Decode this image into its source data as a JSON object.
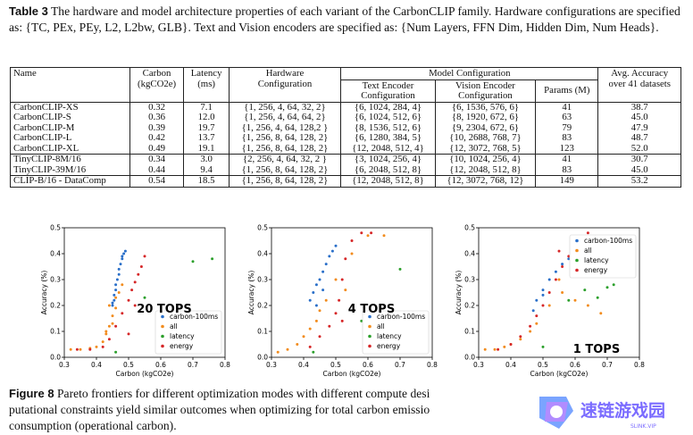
{
  "table_caption": {
    "label": "Table 3",
    "text": "The hardware and model architecture properties of each variant of the CarbonCLIP family. Hardware configurations are specified as: {TC, PEx, PEy, L2, L2bw, GLB}. Text and Vision encoders are specified as: {Num Layers, FFN Dim, Hidden Dim, Num Heads}."
  },
  "table": {
    "headers": {
      "name": "Name",
      "carbon": [
        "Carbon",
        "(kgCO2e)"
      ],
      "latency": [
        "Latency",
        "(ms)"
      ],
      "hardware": [
        "Hardware",
        "Configuration"
      ],
      "model_config": "Model Configuration",
      "text_encoder": [
        "Text Encoder",
        "Configuration"
      ],
      "vision_encoder": [
        "Vision Encoder",
        "Configuration"
      ],
      "params": "Params (M)",
      "accuracy": [
        "Avg. Accuracy",
        "over 41 datasets"
      ]
    },
    "groups": [
      [
        [
          "CarbonCLIP-XS",
          "0.32",
          "7.1",
          "{1, 256, 4, 64, 32, 2}",
          "{6, 1024, 284, 4}",
          "{6, 1536, 576, 6}",
          "41",
          "38.7"
        ],
        [
          "CarbonCLIP-S",
          "0.36",
          "12.0",
          "{1, 256, 4, 64, 64, 2}",
          "{6, 1024, 512, 6}",
          "{8, 1920, 672, 6}",
          "63",
          "45.0"
        ],
        [
          "CarbonCLIP-M",
          "0.39",
          "19.7",
          "{1, 256, 4, 64, 128,2 }",
          "{8, 1536, 512, 6}",
          "{9, 2304, 672, 6}",
          "79",
          "47.9"
        ],
        [
          "CarbonCLIP-L",
          "0.42",
          "13.7",
          "{1, 256, 8, 64, 128, 2}",
          "{6, 1280, 384, 5}",
          "{10, 2688, 768, 7}",
          "83",
          "48.7"
        ],
        [
          "CarbonCLIP-XL",
          "0.49",
          "19.1",
          "{1, 256, 8, 64, 128, 2}",
          "{12, 2048, 512, 4}",
          "{12, 3072, 768, 5}",
          "123",
          "52.0"
        ]
      ],
      [
        [
          "TinyCLIP-8M/16",
          "0.34",
          "3.0",
          "{2, 256, 4, 64, 32, 2 }",
          "{3, 1024, 256, 4}",
          "{10, 1024, 256, 4}",
          "41",
          "30.7"
        ],
        [
          "TinyCLIP-39M/16",
          "0.44",
          "9.4",
          "{1, 256, 8, 64, 128, 2}",
          "{6, 2048, 512, 8}",
          "{12, 2048, 512, 8}",
          "83",
          "45.0"
        ]
      ],
      [
        [
          "CLIP-B/16 - DataComp",
          "0.54",
          "18.5",
          "{1, 256, 8, 64, 128, 2}",
          "{12, 2048, 512, 8}",
          "{12, 3072, 768, 12}",
          "149",
          "53.2"
        ]
      ]
    ]
  },
  "figure_caption": {
    "label": "Figure 8",
    "text": "Pareto frontiers for different optimization modes with different compute desi",
    "line2": "putational constraints yield similar outcomes when optimizing for total carbon emissio",
    "line3": "consumption (operational carbon)."
  },
  "watermark": {
    "text": "速链游戏园",
    "subtext": "SLINK.VIP"
  },
  "colors": {
    "carbon-100ms": "#2a6fc9",
    "all": "#f28c1e",
    "latency": "#2ca02c",
    "energy": "#d62728"
  },
  "chart_data": [
    {
      "type": "scatter",
      "annotation": "20 TOPS",
      "xlabel": "Carbon (kgCO2e)",
      "ylabel": "Accuracy (%)",
      "xlim": [
        0.3,
        0.8
      ],
      "ylim": [
        0.0,
        0.5
      ],
      "xticks": [
        "0.3",
        "0.4",
        "0.5",
        "0.6",
        "0.7",
        "0.8"
      ],
      "yticks": [
        "0.0",
        "0.1",
        "0.2",
        "0.3",
        "0.4",
        "0.5"
      ],
      "legend_position": "lower-right",
      "series": [
        {
          "name": "carbon-100ms",
          "x": [
            0.45,
            0.455,
            0.46,
            0.46,
            0.465,
            0.47,
            0.47,
            0.475,
            0.48,
            0.48,
            0.485,
            0.49,
            0.45,
            0.455
          ],
          "y": [
            0.21,
            0.24,
            0.26,
            0.28,
            0.3,
            0.32,
            0.34,
            0.36,
            0.38,
            0.39,
            0.4,
            0.41,
            0.2,
            0.22
          ]
        },
        {
          "name": "all",
          "x": [
            0.32,
            0.35,
            0.38,
            0.4,
            0.42,
            0.43,
            0.44,
            0.45,
            0.44,
            0.46,
            0.47,
            0.45,
            0.43,
            0.46,
            0.48
          ],
          "y": [
            0.03,
            0.03,
            0.035,
            0.04,
            0.06,
            0.09,
            0.12,
            0.16,
            0.2,
            0.23,
            0.25,
            0.13,
            0.1,
            0.19,
            0.28
          ]
        },
        {
          "name": "latency",
          "x": [
            0.46,
            0.62,
            0.7,
            0.76,
            0.55
          ],
          "y": [
            0.02,
            0.14,
            0.37,
            0.38,
            0.23
          ]
        },
        {
          "name": "energy",
          "x": [
            0.34,
            0.38,
            0.42,
            0.44,
            0.46,
            0.48,
            0.5,
            0.51,
            0.52,
            0.53,
            0.54,
            0.55,
            0.5,
            0.52
          ],
          "y": [
            0.03,
            0.03,
            0.04,
            0.07,
            0.12,
            0.17,
            0.22,
            0.26,
            0.29,
            0.32,
            0.35,
            0.39,
            0.09,
            0.2
          ]
        }
      ]
    },
    {
      "type": "scatter",
      "annotation": "4 TOPS",
      "xlabel": "Carbon (kgCO2e)",
      "ylabel": "Accuracy (%)",
      "xlim": [
        0.3,
        0.8
      ],
      "ylim": [
        0.0,
        0.5
      ],
      "xticks": [
        "0.3",
        "0.4",
        "0.5",
        "0.6",
        "0.7",
        "0.8"
      ],
      "yticks": [
        "0.0",
        "0.1",
        "0.2",
        "0.3",
        "0.4",
        "0.5"
      ],
      "legend_position": "lower-right",
      "series": [
        {
          "name": "carbon-100ms",
          "x": [
            0.42,
            0.43,
            0.44,
            0.45,
            0.46,
            0.47,
            0.48,
            0.49,
            0.5,
            0.44,
            0.46
          ],
          "y": [
            0.22,
            0.25,
            0.28,
            0.3,
            0.33,
            0.36,
            0.39,
            0.41,
            0.43,
            0.2,
            0.26
          ]
        },
        {
          "name": "all",
          "x": [
            0.32,
            0.35,
            0.38,
            0.4,
            0.42,
            0.44,
            0.45,
            0.47,
            0.5,
            0.55,
            0.6,
            0.65,
            0.53
          ],
          "y": [
            0.02,
            0.03,
            0.05,
            0.08,
            0.11,
            0.14,
            0.18,
            0.22,
            0.3,
            0.4,
            0.47,
            0.47,
            0.26
          ]
        },
        {
          "name": "latency",
          "x": [
            0.43,
            0.58,
            0.7
          ],
          "y": [
            0.02,
            0.14,
            0.34
          ]
        },
        {
          "name": "energy",
          "x": [
            0.42,
            0.45,
            0.48,
            0.5,
            0.51,
            0.52,
            0.53,
            0.55,
            0.58,
            0.61,
            0.52
          ],
          "y": [
            0.04,
            0.08,
            0.12,
            0.17,
            0.22,
            0.3,
            0.38,
            0.45,
            0.48,
            0.48,
            0.14
          ]
        }
      ]
    },
    {
      "type": "scatter",
      "annotation": "1 TOPS",
      "xlabel": "Carbon (kgCO2e)",
      "ylabel": "Accuracy (%)",
      "xlim": [
        0.3,
        0.8
      ],
      "ylim": [
        0.0,
        0.5
      ],
      "xticks": [
        "0.3",
        "0.4",
        "0.5",
        "0.6",
        "0.7",
        "0.8"
      ],
      "yticks": [
        "0.0",
        "0.1",
        "0.2",
        "0.3",
        "0.4",
        "0.5"
      ],
      "legend_position": "top-right",
      "series": [
        {
          "name": "carbon-100ms",
          "x": [
            0.47,
            0.48,
            0.5,
            0.52,
            0.54,
            0.56,
            0.58,
            0.5
          ],
          "y": [
            0.18,
            0.22,
            0.26,
            0.3,
            0.33,
            0.36,
            0.38,
            0.24
          ]
        },
        {
          "name": "all",
          "x": [
            0.32,
            0.35,
            0.38,
            0.4,
            0.43,
            0.46,
            0.48,
            0.52,
            0.56,
            0.6,
            0.64,
            0.68,
            0.55
          ],
          "y": [
            0.03,
            0.03,
            0.04,
            0.05,
            0.07,
            0.1,
            0.13,
            0.2,
            0.25,
            0.22,
            0.2,
            0.17,
            0.3
          ]
        },
        {
          "name": "latency",
          "x": [
            0.5,
            0.58,
            0.63,
            0.67,
            0.7,
            0.72,
            0.6
          ],
          "y": [
            0.04,
            0.22,
            0.26,
            0.23,
            0.27,
            0.28,
            0.33
          ]
        },
        {
          "name": "energy",
          "x": [
            0.36,
            0.4,
            0.43,
            0.46,
            0.48,
            0.5,
            0.52,
            0.54,
            0.56,
            0.58,
            0.6,
            0.62,
            0.64,
            0.55
          ],
          "y": [
            0.03,
            0.05,
            0.08,
            0.12,
            0.16,
            0.2,
            0.25,
            0.3,
            0.35,
            0.39,
            0.43,
            0.46,
            0.48,
            0.41
          ]
        }
      ]
    }
  ]
}
